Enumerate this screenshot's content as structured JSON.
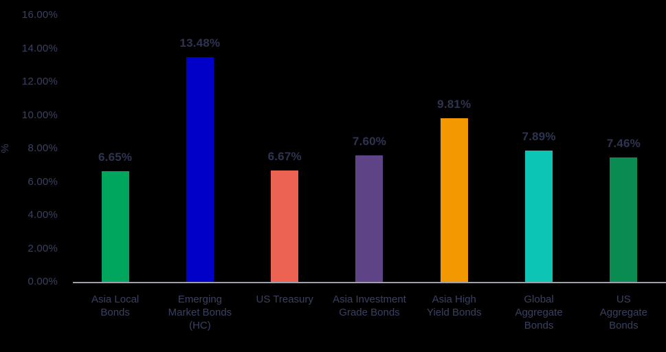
{
  "chart_data": {
    "type": "bar",
    "title": "",
    "xlabel": "",
    "ylabel": "%",
    "ylim": [
      0,
      16
    ],
    "ytick_step": 2,
    "ytick_labels": [
      "0.00%",
      "2.00%",
      "4.00%",
      "6.00%",
      "8.00%",
      "10.00%",
      "12.00%",
      "14.00%",
      "16.00%"
    ],
    "grid": false,
    "legend": false,
    "categories": [
      "Asia Local Bonds",
      "Emerging Market Bonds (HC)",
      "US Treasury",
      "Asia Investment Grade Bonds",
      "Asia High Yield Bonds",
      "Global Aggregate Bonds",
      "US Aggregate Bonds"
    ],
    "category_display": [
      "Asia Local\nBonds",
      "Emerging\nMarket Bonds\n(HC)",
      "US Treasury",
      "Asia Investment\nGrade Bonds",
      "Asia High\nYield Bonds",
      "Global\nAggregate\nBonds",
      "US\nAggregate\nBonds"
    ],
    "values": [
      6.65,
      13.48,
      6.67,
      7.6,
      9.81,
      7.89,
      7.46
    ],
    "value_labels": [
      "6.65%",
      "13.48%",
      "6.67%",
      "7.60%",
      "9.81%",
      "7.89%",
      "7.46%"
    ],
    "bar_colors": [
      "#00A55E",
      "#0000C8",
      "#EC6353",
      "#5E4387",
      "#F39800",
      "#0CC5B5",
      "#0A8B51"
    ]
  },
  "style": {
    "background_color": "#000000",
    "tick_label_color": "#3A4160",
    "value_label_color": "#2E3450",
    "axis_line_color": "#9FA0AE"
  }
}
